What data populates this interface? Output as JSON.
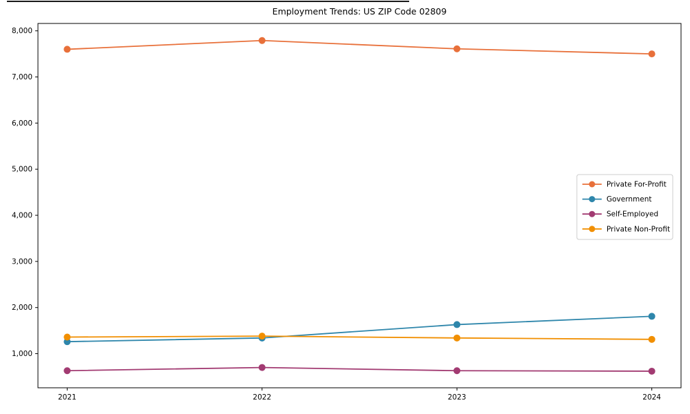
{
  "figure": {
    "background": "#ffffff"
  },
  "chart_data": {
    "type": "line",
    "title": "Employment Trends: US ZIP Code 02809",
    "x": [
      2021,
      2022,
      2023,
      2024
    ],
    "x_tick_labels": [
      "2021",
      "2022",
      "2023",
      "2024"
    ],
    "series": [
      {
        "name": "Private For-Profit",
        "color": "#E8703A",
        "values": [
          7600,
          7790,
          7610,
          7500
        ]
      },
      {
        "name": "Government",
        "color": "#2E86AB",
        "values": [
          1260,
          1340,
          1630,
          1810
        ]
      },
      {
        "name": "Self-Employed",
        "color": "#A23B72",
        "values": [
          630,
          700,
          630,
          620
        ]
      },
      {
        "name": "Private Non-Profit",
        "color": "#F18F01",
        "values": [
          1360,
          1380,
          1340,
          1310
        ]
      }
    ],
    "xlabel": "",
    "ylabel": "",
    "xlim": [
      2020.85,
      2024.15
    ],
    "ylim": [
      260,
      8160
    ],
    "y_ticks": [
      1000,
      2000,
      3000,
      4000,
      5000,
      6000,
      7000,
      8000
    ],
    "y_tick_labels": [
      "1,000",
      "2,000",
      "3,000",
      "4,000",
      "5,000",
      "6,000",
      "7,000",
      "8,000"
    ],
    "grid": false,
    "legend": {
      "position": "center-right",
      "border_color": "#cccccc",
      "background": "#ffffff"
    },
    "axis_color": "#000000",
    "marker": "circle"
  }
}
